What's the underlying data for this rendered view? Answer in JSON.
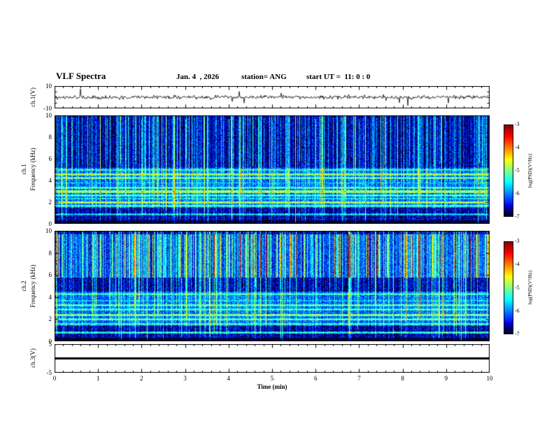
{
  "header": {
    "title": "VLF Spectra",
    "date": "Jan. 4  , 2026",
    "station": "station= ANG",
    "start_ut": "start UT =  11: 0 : 0"
  },
  "x_axis": {
    "label": "Time (min)",
    "min": 0,
    "max": 10,
    "ticks": [
      0,
      1,
      2,
      3,
      4,
      5,
      6,
      7,
      8,
      9,
      10
    ]
  },
  "colorbar": {
    "label": "log(PSD)(V²/Hz)",
    "ticks": [
      -3,
      -4,
      -5,
      -6,
      -7
    ],
    "vmin": -7,
    "vmax": -3,
    "colormap": "jet"
  },
  "chart_data": [
    {
      "type": "line",
      "name": "ch1_voltage_waveform",
      "ylabel": "ch.1(V)",
      "ylim": [
        -10,
        10
      ],
      "yticks_labeled": [
        10,
        -10
      ],
      "description": "broadband noise waveform centered on 0 V, about +/-2 V with sparse impulsive spikes",
      "seed": 101,
      "noise_v": 1.0,
      "spike_prob": 0.015,
      "spike_v": 4.5,
      "line_color": "#000000"
    },
    {
      "type": "heatmap",
      "name": "ch1_spectrogram",
      "ylabel_lines": [
        "ch.1",
        "Frequency (kHz)"
      ],
      "ylim": [
        0,
        10
      ],
      "fmax": 10,
      "yticks_labeled": [
        10,
        8,
        6,
        4,
        2,
        0
      ],
      "vmin": -7,
      "vmax": -3,
      "seed": 2025,
      "base_level": -6.65,
      "streak_density": 0.55,
      "streak_strength": 1.7,
      "streak_fmin_max": 6,
      "regions": [
        {
          "f0": 1.5,
          "f1": 5.2,
          "level": -6.1
        }
      ],
      "bands": [
        {
          "f": 0.9,
          "w": 0.1,
          "level": -5.5
        },
        {
          "f": 1.7,
          "w": 0.09,
          "level": -5.0
        },
        {
          "f": 2.0,
          "w": 0.1,
          "level": -4.7
        },
        {
          "f": 2.35,
          "w": 0.08,
          "level": -5.3
        },
        {
          "f": 2.65,
          "w": 0.09,
          "level": -5.0
        },
        {
          "f": 3.0,
          "w": 0.11,
          "level": -4.5
        },
        {
          "f": 3.35,
          "w": 0.09,
          "level": -5.0
        },
        {
          "f": 3.8,
          "w": 0.08,
          "level": -5.5
        },
        {
          "f": 4.25,
          "w": 0.09,
          "level": -4.9
        },
        {
          "f": 4.6,
          "w": 0.1,
          "level": -4.7
        },
        {
          "f": 5.0,
          "w": 0.09,
          "level": -5.1
        }
      ],
      "description": "VLF spectrogram: green PSD bands between 1.5 and 5 kHz, dense vertical sferic streaks up to 10 kHz over dark blue background"
    },
    {
      "type": "heatmap",
      "name": "ch2_spectrogram",
      "ylabel_lines": [
        "ch.2",
        "Frequency (kHz)"
      ],
      "ylim": [
        0,
        10
      ],
      "fmax": 10,
      "yticks_labeled": [
        10,
        8,
        6,
        4,
        2,
        0
      ],
      "vmin": -7,
      "vmax": -3,
      "seed": 7041,
      "base_level": -6.65,
      "streak_density": 0.5,
      "streak_strength": 1.6,
      "streak_fmin_max": 5,
      "hi_streaks": {
        "f0": 5.8,
        "f1": 9.7,
        "density": 0.55,
        "strength": 2.1
      },
      "regions": [
        {
          "f0": 1.4,
          "f1": 4.5,
          "level": -6.1
        },
        {
          "f0": 5.8,
          "f1": 9.7,
          "level": -6.3
        }
      ],
      "bands": [
        {
          "f": 0.8,
          "w": 0.1,
          "level": -5.2
        },
        {
          "f": 1.6,
          "w": 0.09,
          "level": -5.1
        },
        {
          "f": 2.0,
          "w": 0.09,
          "level": -4.9
        },
        {
          "f": 2.4,
          "w": 0.1,
          "level": -4.7
        },
        {
          "f": 2.9,
          "w": 0.09,
          "level": -5.0
        },
        {
          "f": 3.3,
          "w": 0.09,
          "level": -4.9
        },
        {
          "f": 3.7,
          "w": 0.08,
          "level": -5.4
        },
        {
          "f": 4.3,
          "w": 0.09,
          "level": -5.1
        }
      ],
      "description": "VLF spectrogram: strong impulsive activity 6-9.5 kHz, green PSD bands 1.5-4.5 kHz"
    },
    {
      "type": "line",
      "name": "ch3_voltage_waveform",
      "ylabel": "ch.3(V)",
      "ylim": [
        -5,
        5
      ],
      "yticks_labeled": [
        5,
        -5
      ],
      "value": 0,
      "description": "flat line at 0 V",
      "line_color": "#000000"
    }
  ]
}
